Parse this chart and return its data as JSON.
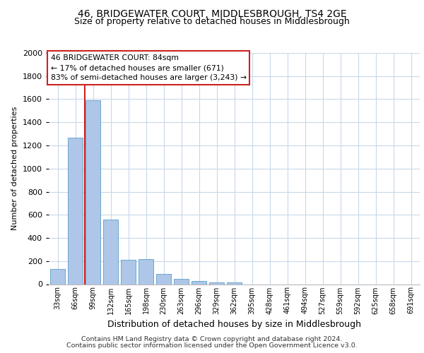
{
  "title1": "46, BRIDGEWATER COURT, MIDDLESBROUGH, TS4 2GE",
  "title2": "Size of property relative to detached houses in Middlesbrough",
  "xlabel": "Distribution of detached houses by size in Middlesbrough",
  "ylabel": "Number of detached properties",
  "bar_categories": [
    "33sqm",
    "66sqm",
    "99sqm",
    "132sqm",
    "165sqm",
    "198sqm",
    "230sqm",
    "263sqm",
    "296sqm",
    "329sqm",
    "362sqm",
    "395sqm",
    "428sqm",
    "461sqm",
    "494sqm",
    "527sqm",
    "559sqm",
    "592sqm",
    "625sqm",
    "658sqm",
    "691sqm"
  ],
  "bar_values": [
    130,
    1270,
    1590,
    560,
    210,
    215,
    90,
    45,
    28,
    18,
    18,
    0,
    0,
    0,
    0,
    0,
    0,
    0,
    0,
    0,
    0
  ],
  "bar_color": "#aec6e8",
  "bar_edge_color": "#5a9fc8",
  "ylim": [
    0,
    2000
  ],
  "yticks": [
    0,
    200,
    400,
    600,
    800,
    1000,
    1200,
    1400,
    1600,
    1800,
    2000
  ],
  "property_line_color": "#cc2222",
  "annotation_text": "46 BRIDGEWATER COURT: 84sqm\n← 17% of detached houses are smaller (671)\n83% of semi-detached houses are larger (3,243) →",
  "annotation_box_color": "#cc2222",
  "footer1": "Contains HM Land Registry data © Crown copyright and database right 2024.",
  "footer2": "Contains public sector information licensed under the Open Government Licence v3.0.",
  "grid_color": "#c8d8ea"
}
